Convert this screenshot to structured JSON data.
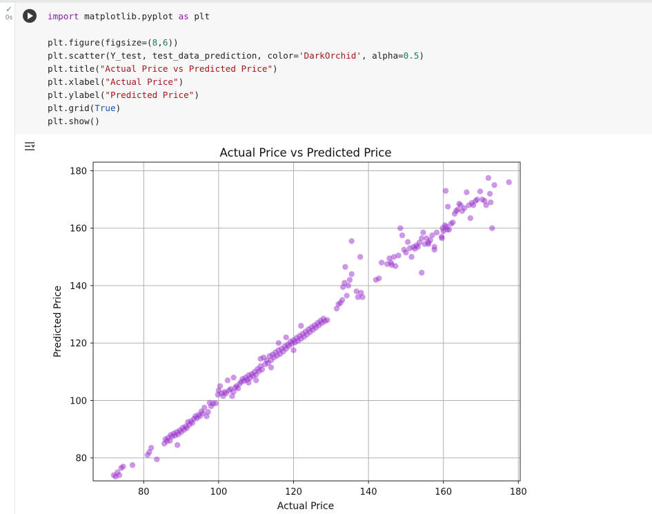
{
  "cell": {
    "status_icon": "check-icon",
    "status_mark": "✓",
    "exec_time": "0s",
    "code_lines": [
      [
        {
          "t": "import",
          "c": "kw"
        },
        {
          "t": " matplotlib.pyplot ",
          "c": ""
        },
        {
          "t": "as",
          "c": "kw"
        },
        {
          "t": " plt",
          "c": ""
        }
      ],
      [],
      [
        {
          "t": "plt.figure(figsize=(",
          "c": ""
        },
        {
          "t": "8",
          "c": "num"
        },
        {
          "t": ",",
          "c": ""
        },
        {
          "t": "6",
          "c": "num"
        },
        {
          "t": "))",
          "c": ""
        }
      ],
      [
        {
          "t": "plt.scatter(Y_test, test_data_prediction, color=",
          "c": ""
        },
        {
          "t": "'DarkOrchid'",
          "c": "str"
        },
        {
          "t": ", alpha=",
          "c": ""
        },
        {
          "t": "0.5",
          "c": "num"
        },
        {
          "t": ")",
          "c": ""
        }
      ],
      [
        {
          "t": "plt.title(",
          "c": ""
        },
        {
          "t": "\"Actual Price vs Predicted Price\"",
          "c": "str"
        },
        {
          "t": ")",
          "c": ""
        }
      ],
      [
        {
          "t": "plt.xlabel(",
          "c": ""
        },
        {
          "t": "\"Actual Price\"",
          "c": "str"
        },
        {
          "t": ")",
          "c": ""
        }
      ],
      [
        {
          "t": "plt.ylabel(",
          "c": ""
        },
        {
          "t": "\"Predicted Price\"",
          "c": "str"
        },
        {
          "t": ")",
          "c": ""
        }
      ],
      [
        {
          "t": "plt.grid(",
          "c": ""
        },
        {
          "t": "True",
          "c": "builtin"
        },
        {
          "t": ")",
          "c": ""
        }
      ],
      [
        {
          "t": "plt.show()",
          "c": ""
        }
      ]
    ]
  },
  "output": {
    "icon": "output-toggle-icon"
  },
  "chart_data": {
    "type": "scatter",
    "title": "Actual Price vs Predicted Price",
    "xlabel": "Actual Price",
    "ylabel": "Predicted Price",
    "xlim": [
      66.5,
      180.5
    ],
    "ylim": [
      72,
      183
    ],
    "xticks": [
      80,
      100,
      120,
      140,
      160,
      180
    ],
    "yticks": [
      80,
      100,
      120,
      140,
      160,
      180
    ],
    "grid": true,
    "color": "#9932CC",
    "alpha": 0.5,
    "points": [
      [
        72,
        74
      ],
      [
        72.5,
        73.5
      ],
      [
        73,
        75
      ],
      [
        73.5,
        74
      ],
      [
        74,
        76.5
      ],
      [
        74.5,
        77
      ],
      [
        77,
        77.5
      ],
      [
        81,
        81
      ],
      [
        81.5,
        82
      ],
      [
        82,
        83.5
      ],
      [
        83.5,
        79.5
      ],
      [
        85.5,
        85
      ],
      [
        85.8,
        86.5
      ],
      [
        86.2,
        85.8
      ],
      [
        86.5,
        87
      ],
      [
        87,
        86
      ],
      [
        87.2,
        88
      ],
      [
        87.6,
        87.4
      ],
      [
        88,
        88.5
      ],
      [
        88.4,
        87.8
      ],
      [
        88.8,
        89
      ],
      [
        89.2,
        88.2
      ],
      [
        89,
        84.5
      ],
      [
        89.6,
        89.6
      ],
      [
        90,
        89
      ],
      [
        90.4,
        90.5
      ],
      [
        90.8,
        89.8
      ],
      [
        91.2,
        91
      ],
      [
        91.5,
        90.4
      ],
      [
        91.8,
        92.5
      ],
      [
        92.2,
        91.5
      ],
      [
        92.6,
        92.8
      ],
      [
        93,
        92.2
      ],
      [
        93.4,
        93.6
      ],
      [
        93.8,
        94.5
      ],
      [
        94.2,
        93.8
      ],
      [
        94.6,
        95
      ],
      [
        95,
        94.5
      ],
      [
        95.4,
        96.2
      ],
      [
        95.8,
        95.5
      ],
      [
        96.2,
        97.5
      ],
      [
        96.8,
        94.5
      ],
      [
        97.2,
        96
      ],
      [
        97.6,
        99.2
      ],
      [
        98,
        98
      ],
      [
        98.5,
        99
      ],
      [
        99.2,
        99
      ],
      [
        99.8,
        102
      ],
      [
        100,
        103.5
      ],
      [
        100.4,
        105
      ],
      [
        100.8,
        102.5
      ],
      [
        101.2,
        101.5
      ],
      [
        101.6,
        103
      ],
      [
        102,
        102.5
      ],
      [
        102.4,
        107
      ],
      [
        102.8,
        103.5
      ],
      [
        103.2,
        104
      ],
      [
        103.6,
        101.5
      ],
      [
        104,
        103
      ],
      [
        104.4,
        104.5
      ],
      [
        104.8,
        105
      ],
      [
        105.2,
        104.2
      ],
      [
        105.6,
        105.8
      ],
      [
        106,
        106.5
      ],
      [
        106.4,
        107.5
      ],
      [
        106.8,
        106.8
      ],
      [
        107.2,
        108
      ],
      [
        107.6,
        107.2
      ],
      [
        108,
        108.8
      ],
      [
        108.4,
        107.8
      ],
      [
        108.8,
        109.2
      ],
      [
        109.2,
        108.5
      ],
      [
        109.6,
        110
      ],
      [
        110,
        109
      ],
      [
        110.4,
        111
      ],
      [
        110.8,
        110.2
      ],
      [
        111.2,
        112
      ],
      [
        111.6,
        110.8
      ],
      [
        111.2,
        114.5
      ],
      [
        112,
        115
      ],
      [
        112.4,
        112.6
      ],
      [
        112.8,
        114
      ],
      [
        113.2,
        113
      ],
      [
        113.6,
        115.5
      ],
      [
        114,
        114
      ],
      [
        114.4,
        116
      ],
      [
        114.8,
        115
      ],
      [
        115.2,
        116.8
      ],
      [
        115.6,
        115.6
      ],
      [
        116,
        117.5
      ],
      [
        116.4,
        116.2
      ],
      [
        116.8,
        118
      ],
      [
        117.2,
        117
      ],
      [
        117.6,
        118.8
      ],
      [
        118,
        118
      ],
      [
        118.4,
        119.5
      ],
      [
        118.8,
        119
      ],
      [
        119.2,
        120.5
      ],
      [
        119.6,
        119.8
      ],
      [
        120,
        121
      ],
      [
        120.4,
        120.2
      ],
      [
        120.8,
        121.8
      ],
      [
        121.2,
        120.8
      ],
      [
        121.6,
        122.5
      ],
      [
        122,
        121.5
      ],
      [
        122.4,
        123.2
      ],
      [
        122.8,
        122.2
      ],
      [
        123.2,
        124
      ],
      [
        123.6,
        123
      ],
      [
        124,
        124.8
      ],
      [
        124.4,
        123.8
      ],
      [
        124.8,
        125.5
      ],
      [
        125.2,
        124.6
      ],
      [
        125.6,
        126.2
      ],
      [
        126,
        125.4
      ],
      [
        126.4,
        127
      ],
      [
        126.8,
        126.2
      ],
      [
        127.2,
        127.8
      ],
      [
        127.6,
        127
      ],
      [
        128,
        128.5
      ],
      [
        128.4,
        127.6
      ],
      [
        129,
        128
      ],
      [
        122,
        126
      ],
      [
        116,
        120
      ],
      [
        118,
        122
      ],
      [
        120,
        117.5
      ],
      [
        114,
        111.5
      ],
      [
        108,
        106.2
      ],
      [
        104,
        108
      ],
      [
        110,
        107
      ],
      [
        131.5,
        132
      ],
      [
        132,
        133.5
      ],
      [
        132.5,
        134
      ],
      [
        133,
        135
      ],
      [
        133.2,
        139.5
      ],
      [
        133.6,
        141
      ],
      [
        133.8,
        146.5
      ],
      [
        134.2,
        136.5
      ],
      [
        134.6,
        140
      ],
      [
        135,
        142
      ],
      [
        135.5,
        144
      ],
      [
        135.5,
        155.5
      ],
      [
        136.8,
        138
      ],
      [
        137.2,
        136
      ],
      [
        137.8,
        150
      ],
      [
        138,
        137.5
      ],
      [
        138.4,
        136
      ],
      [
        142,
        142
      ],
      [
        142.8,
        142.5
      ],
      [
        143.5,
        148
      ],
      [
        145,
        147.5
      ],
      [
        145.6,
        149.5
      ],
      [
        146,
        148
      ],
      [
        146.2,
        147.2
      ],
      [
        146.8,
        150
      ],
      [
        147.2,
        146.8
      ],
      [
        148,
        150.5
      ],
      [
        148.5,
        160
      ],
      [
        149,
        157.5
      ],
      [
        149.5,
        152.5
      ],
      [
        150,
        151.5
      ],
      [
        150.5,
        155.2
      ],
      [
        151,
        153
      ],
      [
        151.5,
        150
      ],
      [
        152,
        153.5
      ],
      [
        152.4,
        152.8
      ],
      [
        152.8,
        154
      ],
      [
        153.2,
        153.5
      ],
      [
        153.6,
        155
      ],
      [
        154.2,
        156.5
      ],
      [
        154.6,
        158.5
      ],
      [
        154.2,
        144.5
      ],
      [
        155,
        154.5
      ],
      [
        155.5,
        156.5
      ],
      [
        156,
        155
      ],
      [
        156.5,
        155.8
      ],
      [
        157,
        157.5
      ],
      [
        157.6,
        152.5
      ],
      [
        157.6,
        153.5
      ],
      [
        158.2,
        158.5
      ],
      [
        159.5,
        157
      ],
      [
        159.8,
        160
      ],
      [
        160,
        159
      ],
      [
        160.4,
        161
      ],
      [
        160.6,
        173
      ],
      [
        160.8,
        160.5
      ],
      [
        161.2,
        167.5
      ],
      [
        161.5,
        159.5
      ],
      [
        162,
        161.5
      ],
      [
        162.5,
        162
      ],
      [
        163,
        165
      ],
      [
        163.4,
        166
      ],
      [
        163.8,
        166.5
      ],
      [
        164.2,
        168.5
      ],
      [
        164.6,
        168
      ],
      [
        165,
        166
      ],
      [
        165.6,
        167
      ],
      [
        166.2,
        172.5
      ],
      [
        166.8,
        168
      ],
      [
        167.2,
        163.5
      ],
      [
        167.6,
        168.8
      ],
      [
        168,
        168
      ],
      [
        168.6,
        169.5
      ],
      [
        169,
        170
      ],
      [
        169.8,
        172.8
      ],
      [
        170.4,
        170
      ],
      [
        171,
        169.5
      ],
      [
        171.4,
        168
      ],
      [
        172,
        177.5
      ],
      [
        172.4,
        172
      ],
      [
        172.6,
        169
      ],
      [
        173,
        160
      ],
      [
        173.6,
        175
      ],
      [
        177.5,
        176
      ],
      [
        161,
        159.5
      ],
      [
        159.6,
        156.5
      ],
      [
        156,
        154.5
      ]
    ]
  }
}
